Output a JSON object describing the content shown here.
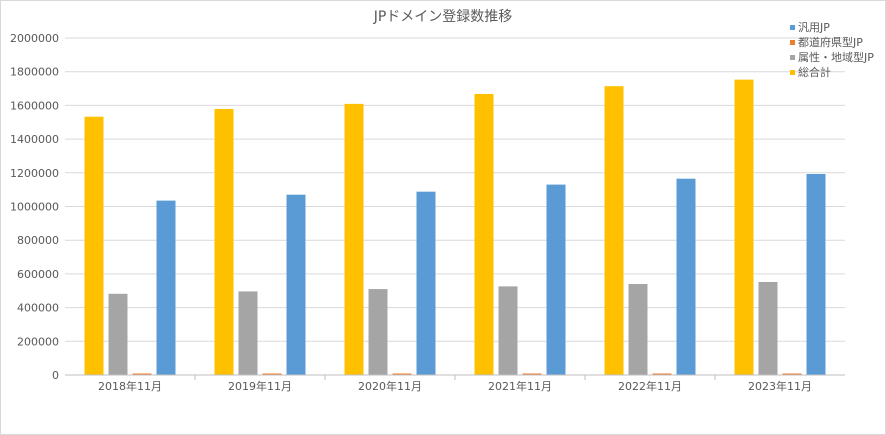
{
  "chart_data": {
    "type": "bar",
    "title": "JPドメイン登録数推移",
    "categories": [
      "2018年11月",
      "2019年11月",
      "2020年11月",
      "2021年11月",
      "2022年11月",
      "2023年11月"
    ],
    "ylim": [
      0,
      2000000
    ],
    "yticks": [
      0,
      200000,
      400000,
      600000,
      800000,
      1000000,
      1200000,
      1400000,
      1600000,
      1800000,
      2000000
    ],
    "grid": true,
    "legend_position": "top-right",
    "bar_order": [
      "総合計",
      "属性・地域型JP",
      "都道府県型JP",
      "汎用JP"
    ],
    "series": [
      {
        "name": "汎用JP",
        "color": "#5b9bd5",
        "values": [
          1035000,
          1070000,
          1088000,
          1130000,
          1165000,
          1193000
        ]
      },
      {
        "name": "都道府県型JP",
        "color": "#ed7d31",
        "values": [
          9000,
          9000,
          9000,
          9000,
          9000,
          9000
        ]
      },
      {
        "name": "属性・地域型JP",
        "color": "#a5a5a5",
        "values": [
          482000,
          496000,
          510000,
          526000,
          540000,
          552000
        ]
      },
      {
        "name": "総合計",
        "color": "#ffc000",
        "values": [
          1533000,
          1579000,
          1609000,
          1668000,
          1714000,
          1753000
        ]
      }
    ]
  }
}
